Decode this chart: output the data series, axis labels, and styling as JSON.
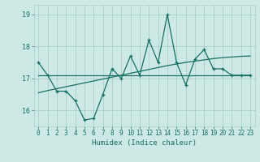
{
  "x": [
    0,
    1,
    2,
    3,
    4,
    5,
    6,
    7,
    8,
    9,
    10,
    11,
    12,
    13,
    14,
    15,
    16,
    17,
    18,
    19,
    20,
    21,
    22,
    23
  ],
  "y_main": [
    17.5,
    17.1,
    16.6,
    16.6,
    16.3,
    15.7,
    15.75,
    16.5,
    17.3,
    17.0,
    17.7,
    17.1,
    18.2,
    17.5,
    19.0,
    17.5,
    16.8,
    17.6,
    17.9,
    17.3,
    17.3,
    17.1,
    17.1,
    17.1
  ],
  "y_avg": [
    17.1,
    17.1,
    17.1,
    17.1,
    17.1,
    17.1,
    17.1,
    17.1,
    17.1,
    17.1,
    17.1,
    17.1,
    17.1,
    17.1,
    17.1,
    17.1,
    17.1,
    17.1,
    17.1,
    17.1,
    17.1,
    17.1,
    17.1,
    17.1
  ],
  "y_trend": [
    16.55,
    16.62,
    16.68,
    16.74,
    16.8,
    16.86,
    16.92,
    16.98,
    17.04,
    17.1,
    17.16,
    17.22,
    17.28,
    17.34,
    17.4,
    17.45,
    17.5,
    17.54,
    17.58,
    17.62,
    17.65,
    17.67,
    17.69,
    17.7
  ],
  "bg_color": "#cce9e5",
  "grid_color": "#aacfcb",
  "line_color": "#1a6e64",
  "xlabel": "Humidex (Indice chaleur)",
  "ylim": [
    15.5,
    19.3
  ],
  "xlim": [
    -0.5,
    23.5
  ],
  "yticks": [
    16,
    17,
    18,
    19
  ],
  "xticks": [
    0,
    1,
    2,
    3,
    4,
    5,
    6,
    7,
    8,
    9,
    10,
    11,
    12,
    13,
    14,
    15,
    16,
    17,
    18,
    19,
    20,
    21,
    22,
    23
  ]
}
